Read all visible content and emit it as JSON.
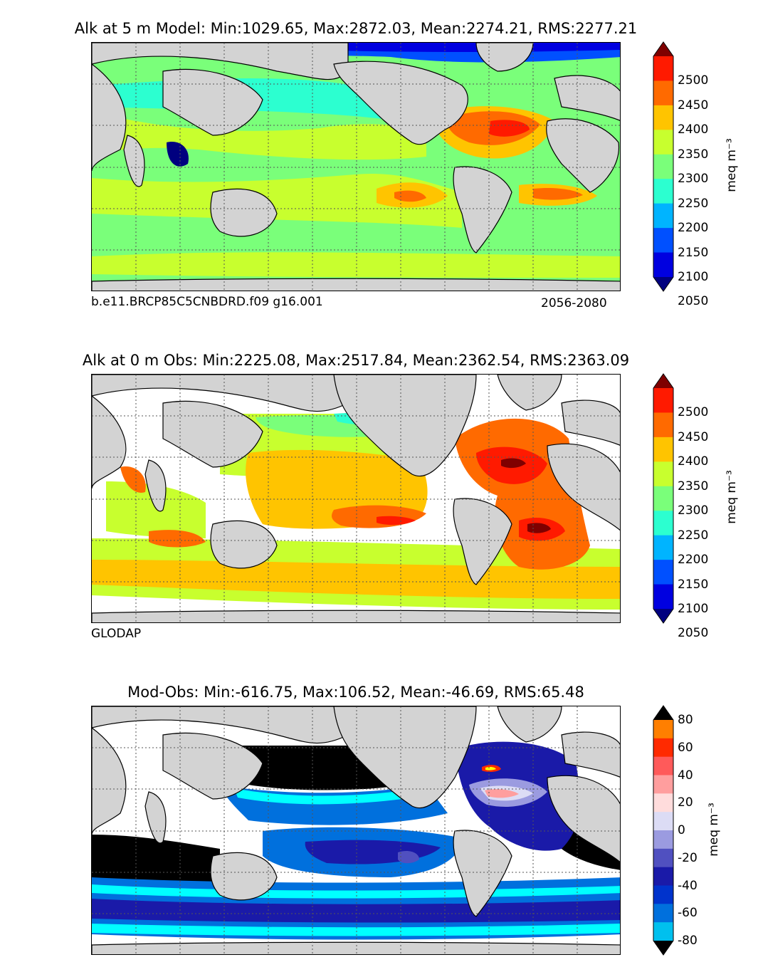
{
  "panels": [
    {
      "title": "Alk at 5 m Model: Min:1029.65, Max:2872.03, Mean:2274.21, RMS:2277.21",
      "left_label": "b.e11.BRCP85C5CNBDRD.f09 g16.001",
      "right_label": "2056-2080",
      "unit": "meq m⁻³",
      "colorbar_ticks": [
        "2500",
        "2450",
        "2400",
        "2350",
        "2300",
        "2250",
        "2200",
        "2150",
        "2100",
        "2050"
      ],
      "colorbar_colors": [
        "#7f0000",
        "#ff1a00",
        "#ff6a00",
        "#ffc400",
        "#c8ff2e",
        "#7aff7a",
        "#2cffd0",
        "#00b4ff",
        "#0050ff",
        "#0000e0",
        "#00007f"
      ],
      "ocean_fields": [
        {
          "level": "2300",
          "color": "#c8ff2e"
        },
        {
          "level": "2250",
          "color": "#7aff7a"
        },
        {
          "level": "2200",
          "color": "#2cffd0"
        },
        {
          "level": "2400",
          "color": "#ff6a00"
        },
        {
          "level": "2350",
          "color": "#ffc400"
        },
        {
          "level": "2050",
          "color": "#00007f"
        }
      ]
    },
    {
      "title": "Alk at 0 m Obs: Min:2225.08, Max:2517.84, Mean:2362.54, RMS:2363.09",
      "left_label": "GLODAP",
      "right_label": "",
      "unit": "meq m⁻³",
      "colorbar_ticks": [
        "2500",
        "2450",
        "2400",
        "2350",
        "2300",
        "2250",
        "2200",
        "2150",
        "2100",
        "2050"
      ],
      "colorbar_colors": [
        "#7f0000",
        "#ff1a00",
        "#ff6a00",
        "#ffc400",
        "#c8ff2e",
        "#7aff7a",
        "#2cffd0",
        "#00b4ff",
        "#0050ff",
        "#0000e0",
        "#00007f"
      ]
    },
    {
      "title": "Mod-Obs: Min:-616.75, Max:106.52, Mean:-46.69, RMS:65.48",
      "left_label": "",
      "right_label": "",
      "unit": "meq m⁻³",
      "colorbar_ticks": [
        "80",
        "60",
        "40",
        "20",
        "0",
        "-20",
        "-40",
        "-60",
        "-80"
      ],
      "colorbar_colors": [
        "#ffff00",
        "#ff7f00",
        "#ff2a00",
        "#ff5a5a",
        "#ff9e9e",
        "#ffdcdc",
        "#dcdcf5",
        "#9b9be0",
        "#5050c0",
        "#1a1aa8",
        "#0033cc",
        "#0070dd",
        "#00c0ee",
        "#00ffff"
      ]
    }
  ],
  "colors": {
    "land": "#d3d3d3",
    "coast": "#000000",
    "grid": "#555555",
    "black_mask": "#000000"
  }
}
